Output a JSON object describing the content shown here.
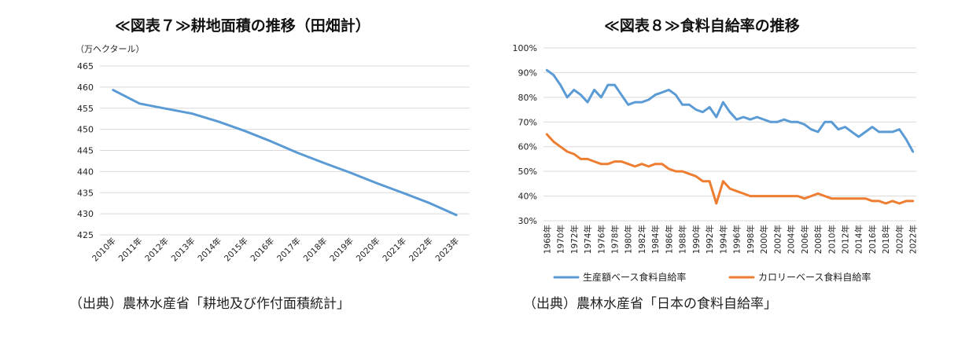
{
  "chart_data": [
    {
      "type": "line",
      "title": "≪図表７≫耕地面積の推移（田畑計）",
      "ylabel": "（万ヘクタール）",
      "xlabel": "",
      "ylim": [
        425,
        465
      ],
      "yticks": [
        "425",
        "430",
        "435",
        "440",
        "445",
        "450",
        "455",
        "460",
        "465"
      ],
      "categories": [
        "2010年",
        "2011年",
        "2012年",
        "2013年",
        "2014年",
        "2015年",
        "2016年",
        "2017年",
        "2018年",
        "2019年",
        "2020年",
        "2021年",
        "2022年",
        "2023年"
      ],
      "series": [
        {
          "values": [
            459.3,
            456.1,
            454.9,
            453.7,
            451.8,
            449.6,
            447.1,
            444.4,
            442.0,
            439.7,
            437.2,
            434.9,
            432.5,
            429.7
          ],
          "color": "#5b9bd5"
        }
      ],
      "grid": true,
      "source": "（出典）農林水産省「耕地及び作付面積統計」"
    },
    {
      "type": "line",
      "title": "≪図表８≫食料自給率の推移",
      "ylabel": "",
      "xlabel": "",
      "ylim": [
        30,
        100
      ],
      "yticks": [
        "30%",
        "40%",
        "50%",
        "60%",
        "70%",
        "80%",
        "90%",
        "100%"
      ],
      "x_start": 1968,
      "x_end": 2022,
      "xtick_labels": [
        "1968年",
        "1970年",
        "1972年",
        "1974年",
        "1976年",
        "1978年",
        "1980年",
        "1982年",
        "1984年",
        "1986年",
        "1988年",
        "1990年",
        "1992年",
        "1994年",
        "1996年",
        "1998年",
        "2000年",
        "2002年",
        "2004年",
        "2006年",
        "2008年",
        "2010年",
        "2012年",
        "2014年",
        "2016年",
        "2018年",
        "2020年",
        "2022年"
      ],
      "series": [
        {
          "name": "生産額ベース食料自給率",
          "color": "#5b9bd5",
          "values": [
            91,
            89,
            85,
            80,
            83,
            81,
            78,
            83,
            80,
            85,
            85,
            81,
            77,
            78,
            78,
            79,
            81,
            82,
            83,
            81,
            77,
            77,
            75,
            74,
            76,
            72,
            78,
            74,
            71,
            72,
            71,
            72,
            71,
            70,
            70,
            71,
            70,
            70,
            69,
            67,
            66,
            70,
            70,
            67,
            68,
            66,
            64,
            66,
            68,
            66,
            66,
            66,
            67,
            63,
            58
          ]
        },
        {
          "name": "カロリーベース食料自給率",
          "color": "#ed7d31",
          "values": [
            65,
            62,
            60,
            58,
            57,
            55,
            55,
            54,
            53,
            53,
            54,
            54,
            53,
            52,
            53,
            52,
            53,
            53,
            51,
            50,
            50,
            49,
            48,
            46,
            46,
            37,
            46,
            43,
            42,
            41,
            40,
            40,
            40,
            40,
            40,
            40,
            40,
            40,
            39,
            40,
            41,
            40,
            39,
            39,
            39,
            39,
            39,
            39,
            38,
            38,
            37,
            38,
            37,
            38,
            38
          ]
        }
      ],
      "legend": "bottom",
      "grid": true,
      "source": "（出典）農林水産省「日本の食料自給率」"
    }
  ]
}
